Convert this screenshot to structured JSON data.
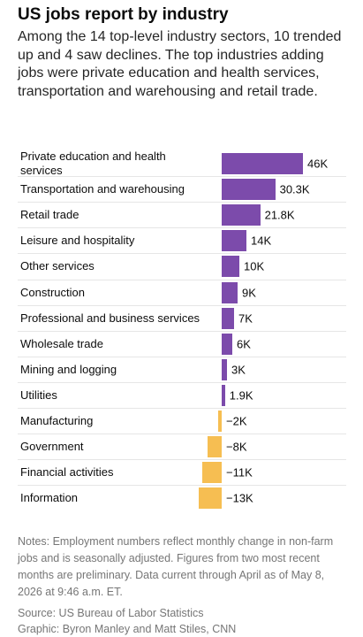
{
  "chart_data": {
    "type": "bar",
    "orientation": "horizontal",
    "title": "US jobs report by industry",
    "subtitle": "Among the 14 top-level industry sectors, 10 trended up and 4 saw declines. The top industries adding jobs were private education and health services, transportation and warehousing and retail trade.",
    "categories": [
      "Private education and health services",
      "Transportation and warehousing",
      "Retail trade",
      "Leisure and hospitality",
      "Other services",
      "Construction",
      "Professional and business services",
      "Wholesale trade",
      "Mining and logging",
      "Utilities",
      "Manufacturing",
      "Government",
      "Financial activities",
      "Information"
    ],
    "values": [
      46000,
      30300,
      21800,
      14000,
      10000,
      9000,
      7000,
      6000,
      3000,
      1900,
      -2000,
      -8000,
      -11000,
      -13000
    ],
    "value_labels": [
      "46K",
      "30.3K",
      "21.8K",
      "14K",
      "10K",
      "9K",
      "7K",
      "6K",
      "3K",
      "1.9K",
      "−2K",
      "−8K",
      "−11K",
      "−13K"
    ],
    "positive_color": "#7c4bab",
    "negative_color": "#f6be52",
    "notes": "Notes: Employment numbers reflect monthly change in non-farm jobs and is seasonally adjusted. Figures from two most recent months are preliminary. Data current through April as of May 8, 2026 at 9:46 a.m. ET.",
    "source": "Source: US Bureau of Labor Statistics",
    "credit": "Graphic: Byron Manley and Matt Stiles, CNN"
  }
}
